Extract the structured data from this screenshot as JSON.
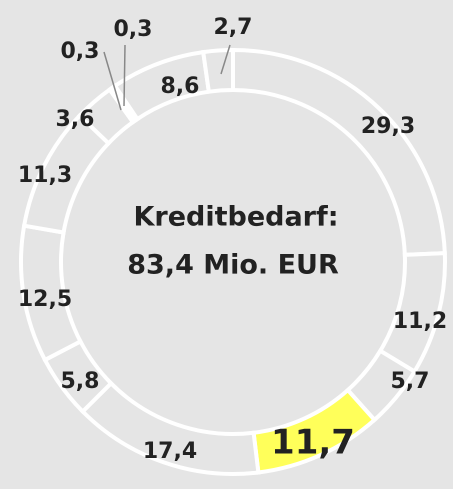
{
  "chart_data": {
    "type": "donut",
    "title": [
      "Kreditbedarf:",
      "83,4 Mio. EUR"
    ],
    "values": [
      29.3,
      11.2,
      5.7,
      11.7,
      17.4,
      5.8,
      12.5,
      11.3,
      3.6,
      0.3,
      0.3,
      8.6,
      2.7
    ],
    "value_labels": [
      "29,3",
      "11,2",
      "5,7",
      "11,7",
      "17,4",
      "5,8",
      "12,5",
      "11,3",
      "3,6",
      "0,3",
      "0,3",
      "8,6",
      "2,7"
    ],
    "color": "#e5e5e5",
    "highlight": {
      "index": 3,
      "color": "#ffff5a"
    }
  }
}
